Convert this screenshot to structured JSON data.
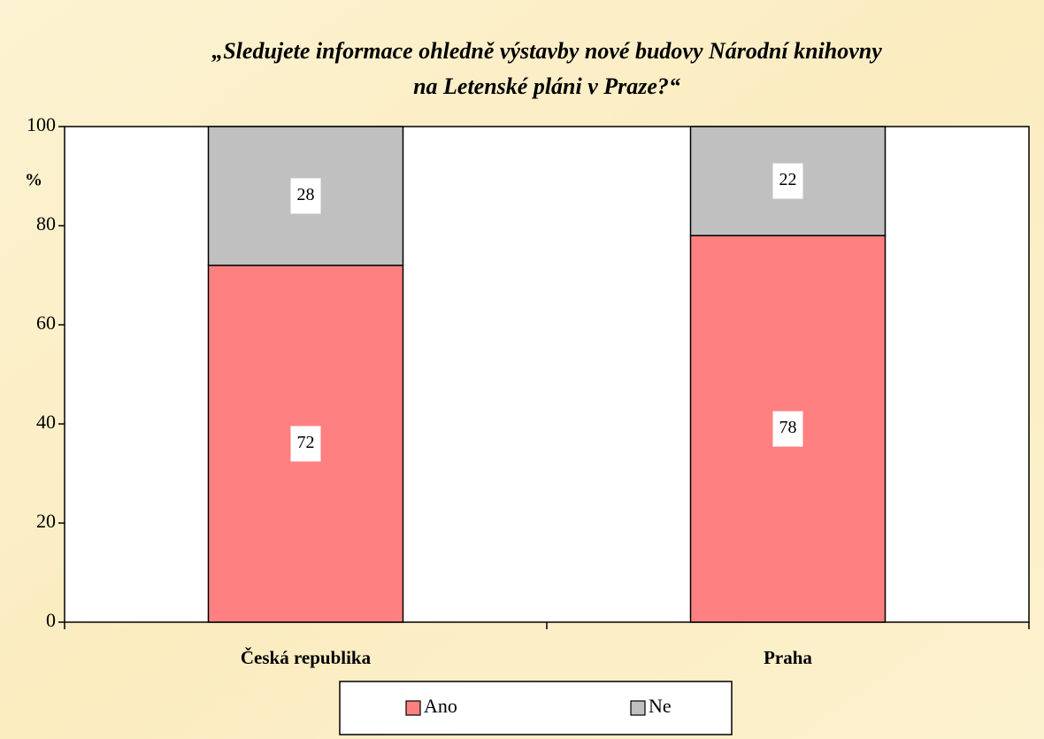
{
  "chart_data": {
    "type": "bar",
    "stacked": true,
    "title": [
      "„Sledujete informace ohledně výstavby nové budovy Národní knihovny",
      "na Letenské pláni v Praze?“"
    ],
    "ylabel": "%",
    "categories": [
      "Česká republika",
      "Praha"
    ],
    "series": [
      {
        "name": "Ano",
        "color": "#ff8080",
        "values": [
          72,
          78
        ]
      },
      {
        "name": "Ne",
        "color": "#c0c0c0",
        "values": [
          28,
          22
        ]
      }
    ],
    "ylim": [
      0,
      100
    ],
    "yticks": [
      0,
      20,
      40,
      60,
      80,
      100
    ],
    "legend": "bottom"
  }
}
